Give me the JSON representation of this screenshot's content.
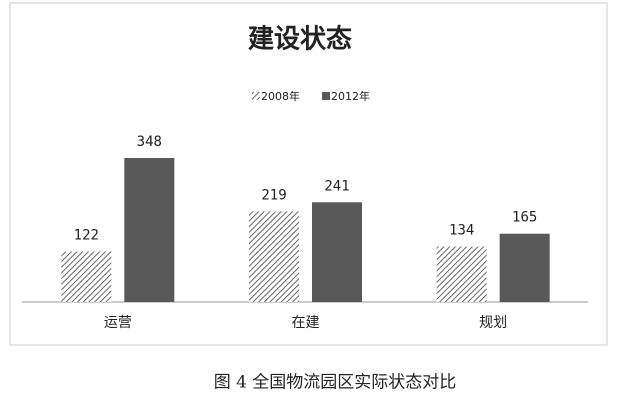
{
  "chart_data": {
    "type": "bar",
    "title": "建设状态",
    "categories": [
      "运营",
      "在建",
      "规划"
    ],
    "series": [
      {
        "name": "2008年",
        "color": "#404040",
        "pattern": "diagonal",
        "values": [
          122,
          219,
          134
        ]
      },
      {
        "name": "2012年",
        "color": "#595959",
        "values": [
          348,
          241,
          165
        ]
      }
    ],
    "data_labels": true
  },
  "caption": "图 4  全国物流园区实际状态对比"
}
